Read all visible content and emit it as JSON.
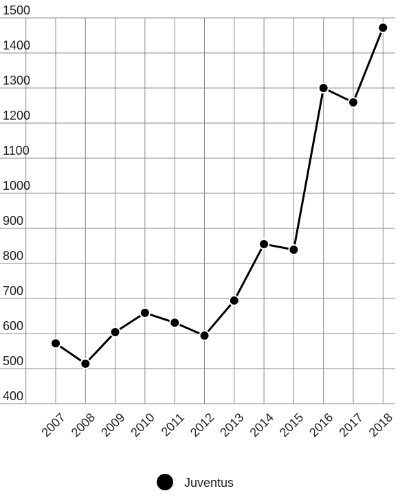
{
  "chart_data": {
    "type": "line",
    "categories": [
      "2007",
      "2008",
      "2009",
      "2010",
      "2011",
      "2012",
      "2013",
      "2014",
      "2015",
      "2016",
      "2017",
      "2018"
    ],
    "series": [
      {
        "name": "Juventus",
        "color": "#000000",
        "values": [
          572,
          514,
          604,
          659,
          631,
          594,
          694,
          855,
          839,
          1300,
          1259,
          1472
        ]
      }
    ],
    "ylim": [
      400,
      1500
    ],
    "yticks": [
      400,
      500,
      600,
      700,
      800,
      900,
      1000,
      1100,
      1200,
      1300,
      1400,
      1500
    ],
    "grid": true,
    "legend": "bottom"
  }
}
